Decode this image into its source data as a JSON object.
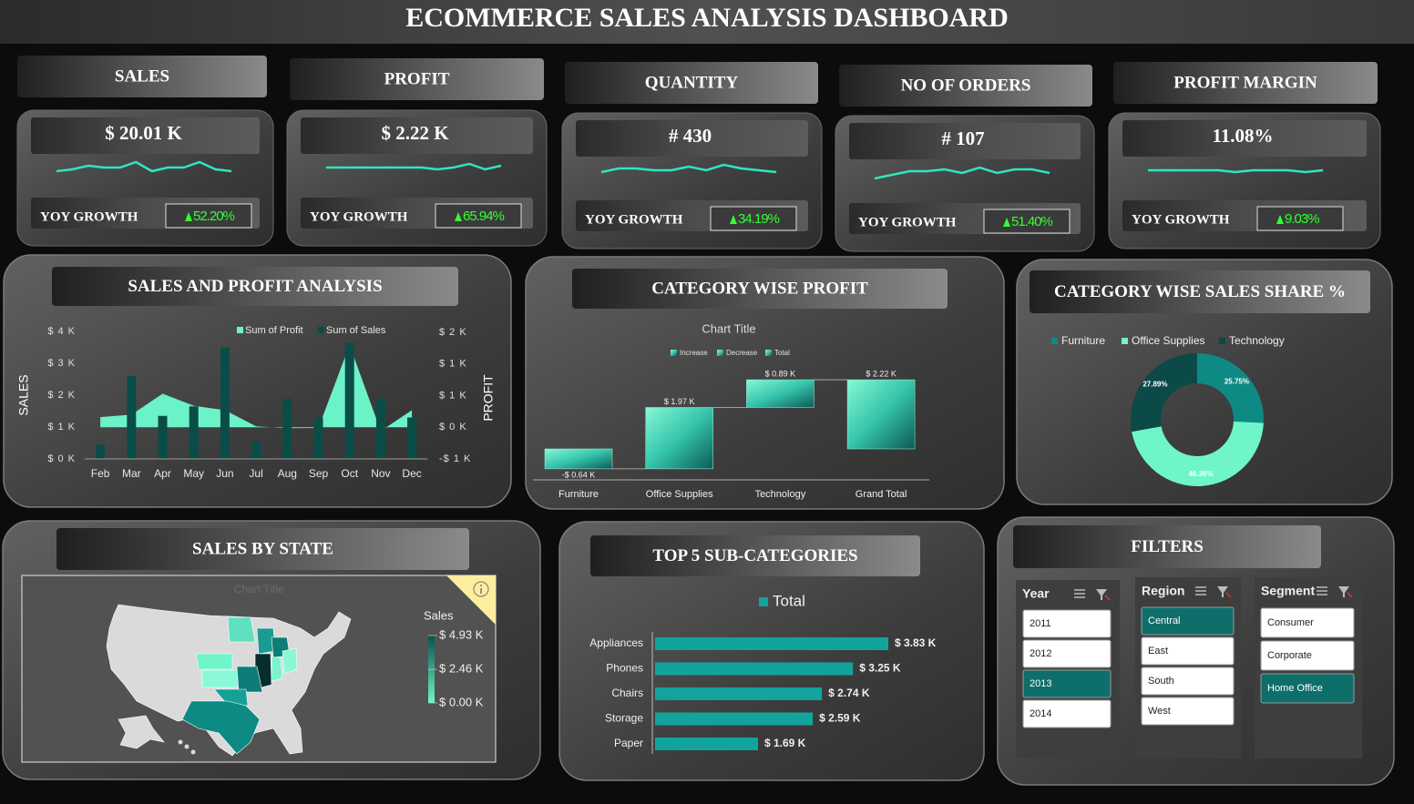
{
  "header": {
    "title": "ECOMMERCE SALES ANALYSIS DASHBOARD"
  },
  "kpis": [
    {
      "label": "SALES",
      "value": "$ 20.01 K",
      "growth_label": "YOY GROWTH",
      "growth": "52.20%",
      "trend": [
        3,
        4,
        6,
        5,
        5,
        8,
        3,
        5,
        5,
        8,
        4,
        3
      ]
    },
    {
      "label": "PROFIT",
      "value": "$ 2.22 K",
      "growth_label": "YOY GROWTH",
      "growth": "65.94%",
      "trend": [
        5,
        5,
        5,
        5,
        5,
        5,
        5,
        4,
        5,
        7,
        4,
        6
      ]
    },
    {
      "label": "QUANTITY",
      "value": "# 430",
      "growth_label": "YOY GROWTH",
      "growth": "34.19%",
      "trend": [
        4,
        6,
        6,
        5,
        5,
        7,
        5,
        8,
        6,
        5,
        4
      ]
    },
    {
      "label": "NO OF ORDERS",
      "value": "# 107",
      "growth_label": "YOY GROWTH",
      "growth": "51.40%",
      "trend": [
        2,
        4,
        6,
        6,
        7,
        5,
        8,
        5,
        7,
        7,
        5
      ]
    },
    {
      "label": "PROFIT MARGIN",
      "value": "11.08%",
      "growth_label": "YOY GROWTH",
      "growth": "9.03%",
      "trend": [
        5,
        5,
        5,
        5,
        5,
        4,
        5,
        5,
        5,
        4,
        5
      ]
    }
  ],
  "chart_data": [
    {
      "type": "combo",
      "title": "SALES  AND PROFIT ANALYSIS",
      "y_label": "SALES",
      "y2_label": "PROFIT",
      "categories": [
        "Feb",
        "Mar",
        "Apr",
        "May",
        "Jun",
        "Jul",
        "Aug",
        "Sep",
        "Oct",
        "Nov",
        "Dec"
      ],
      "series": [
        {
          "name": "Sum of Profit",
          "type": "area",
          "axis": "y2",
          "color": "#6cf2c8",
          "values": [
            160,
            200,
            530,
            340,
            270,
            15,
            -15,
            -10,
            1300,
            -60,
            270
          ]
        },
        {
          "name": "Sum of Sales",
          "type": "bar",
          "axis": "y",
          "color": "#0a4d48",
          "values": [
            450,
            2600,
            1350,
            1650,
            3500,
            550,
            1900,
            1300,
            3650,
            1900,
            1300
          ]
        }
      ],
      "ylim": [
        0,
        4000
      ],
      "yticks": [
        {
          "value": 0,
          "label": "$ 0 K"
        },
        {
          "value": 1000,
          "label": "$ 1 K"
        },
        {
          "value": 2000,
          "label": "$ 2 K"
        },
        {
          "value": 3000,
          "label": "$ 3 K"
        },
        {
          "value": 4000,
          "label": "$ 4 K"
        }
      ],
      "y2lim": [
        -500,
        1500
      ],
      "y2ticks": [
        {
          "value": -500,
          "label": "-$ 1 K"
        },
        {
          "value": 0,
          "label": "$ 0 K"
        },
        {
          "value": 500,
          "label": "$ 1 K"
        },
        {
          "value": 1000,
          "label": "$ 1 K"
        },
        {
          "value": 1500,
          "label": "$ 2 K"
        }
      ]
    },
    {
      "type": "waterfall",
      "title": "CATEGORY WISE PROFIT",
      "chart_title": "Chart Title",
      "legend": [
        "Increase",
        "Decrease",
        "Total"
      ],
      "categories": [
        "Furniture",
        "Office Supplies",
        "Technology",
        "Grand Total"
      ],
      "values": [
        -640,
        1970,
        890,
        2220
      ],
      "value_labels": [
        "-$ 0.64 K",
        "$ 1.97 K",
        "$ 0.89 K",
        "$ 2.22 K"
      ],
      "totals": [
        false,
        false,
        false,
        true
      ],
      "color": "#3fd6b4"
    },
    {
      "type": "pie",
      "title": "CATEGORY WISE SALES SHARE %",
      "categories": [
        "Furniture",
        "Office Supplies",
        "Technology"
      ],
      "values": [
        25.75,
        46.36,
        27.89
      ],
      "value_labels": [
        "25.75%",
        "46.36%",
        "27.89%"
      ],
      "colors": [
        "#0e8a85",
        "#6ff5c9",
        "#0b4a47"
      ],
      "donut": true
    },
    {
      "type": "map",
      "title": "SALES BY STATE",
      "chart_title": "Chart Title",
      "legend_title": "Sales",
      "colorbar": {
        "colors": [
          "#6ff5c9",
          "#0b4f4a"
        ],
        "lim": [
          0,
          4930
        ],
        "ticks": [
          {
            "value": 4930,
            "label": "$ 4.93 K"
          },
          {
            "value": 2460,
            "label": "$ 2.46 K"
          },
          {
            "value": 0,
            "label": "$ 0.00 K"
          }
        ]
      }
    },
    {
      "type": "hbar",
      "title": "TOP 5 SUB-CATEGORIES",
      "series_name": "Total",
      "color": "#12a39d",
      "categories": [
        "Appliances",
        "Phones",
        "Chairs",
        "Storage",
        "Paper"
      ],
      "values": [
        3830,
        3250,
        2740,
        2590,
        1690
      ],
      "value_labels": [
        "$ 3.83 K",
        "$ 3.25 K",
        "$ 2.74 K",
        "$ 2.59 K",
        "$ 1.69 K"
      ]
    }
  ],
  "filters": {
    "title": "FILTERS",
    "slicers": [
      {
        "name": "Year",
        "items": [
          "2011",
          "2012",
          "2013",
          "2014"
        ],
        "selected": "2013"
      },
      {
        "name": "Region",
        "items": [
          "Central",
          "East",
          "South",
          "West"
        ],
        "selected": "Central"
      },
      {
        "name": "Segment",
        "items": [
          "Consumer",
          "Corporate",
          "Home Office"
        ],
        "selected": "Home Office"
      }
    ]
  }
}
